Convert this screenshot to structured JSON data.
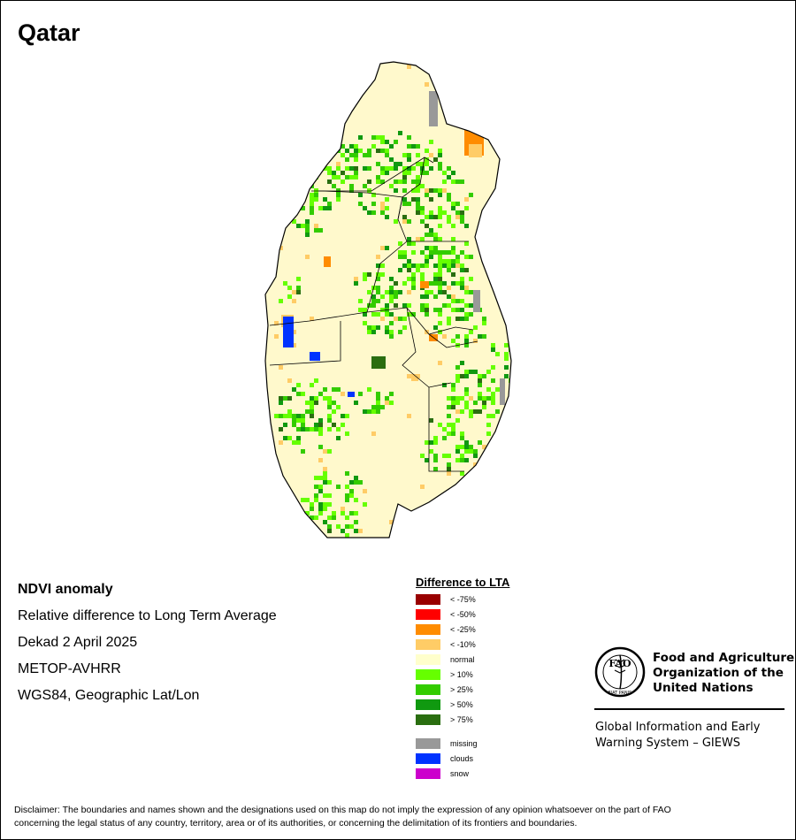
{
  "map": {
    "title": "Qatar",
    "palette": {
      "background": "#fff9cc",
      "outline": "#000000",
      "green_light": "#66ff00",
      "green_mid": "#33cc00",
      "green_dark": "#109910",
      "green_vdark": "#2a6e10",
      "orange": "#ff8c00",
      "orange_light": "#ffcc66",
      "red_dark": "#990000",
      "clouds": "#0033ff",
      "missing": "#999999"
    }
  },
  "info": {
    "product": "NDVI anomaly",
    "description": "Relative difference to Long Term Average",
    "period": "Dekad 2 April 2025",
    "sensor": "METOP-AVHRR",
    "projection": "WGS84, Geographic Lat/Lon"
  },
  "legend": {
    "title": "Difference to LTA",
    "items": [
      {
        "label": "< -75%",
        "color": "#990000"
      },
      {
        "label": "< -50%",
        "color": "#ff0000"
      },
      {
        "label": "< -25%",
        "color": "#ff8c00"
      },
      {
        "label": "< -10%",
        "color": "#ffcc66"
      },
      {
        "label": "normal",
        "color": "#ffffcc"
      },
      {
        "label": "> 10%",
        "color": "#66ff00"
      },
      {
        "label": "> 25%",
        "color": "#33cc00"
      },
      {
        "label": "> 50%",
        "color": "#109910"
      },
      {
        "label": "> 75%",
        "color": "#2a6e10"
      }
    ],
    "extra": [
      {
        "label": "missing",
        "color": "#999999"
      },
      {
        "label": "clouds",
        "color": "#0033ff"
      },
      {
        "label": "snow",
        "color": "#cc00cc"
      }
    ]
  },
  "fao": {
    "logo_text": "FAO",
    "logo_motto": "FIAT PANIS",
    "name_line1": "Food and Agriculture",
    "name_line2": "Organization of the",
    "name_line3": "United Nations",
    "giews_line1": "Global Information and Early",
    "giews_line2": "Warning System – GIEWS"
  },
  "disclaimer": {
    "line1": "Disclaimer: The boundaries and names shown and the designations used on this map do not imply the expression of any opinion whatsoever on the part of FAO",
    "line2": "concerning the legal status of any country, territory, area or of its authorities, or concerning the delimitation of its frontiers and boundaries."
  }
}
